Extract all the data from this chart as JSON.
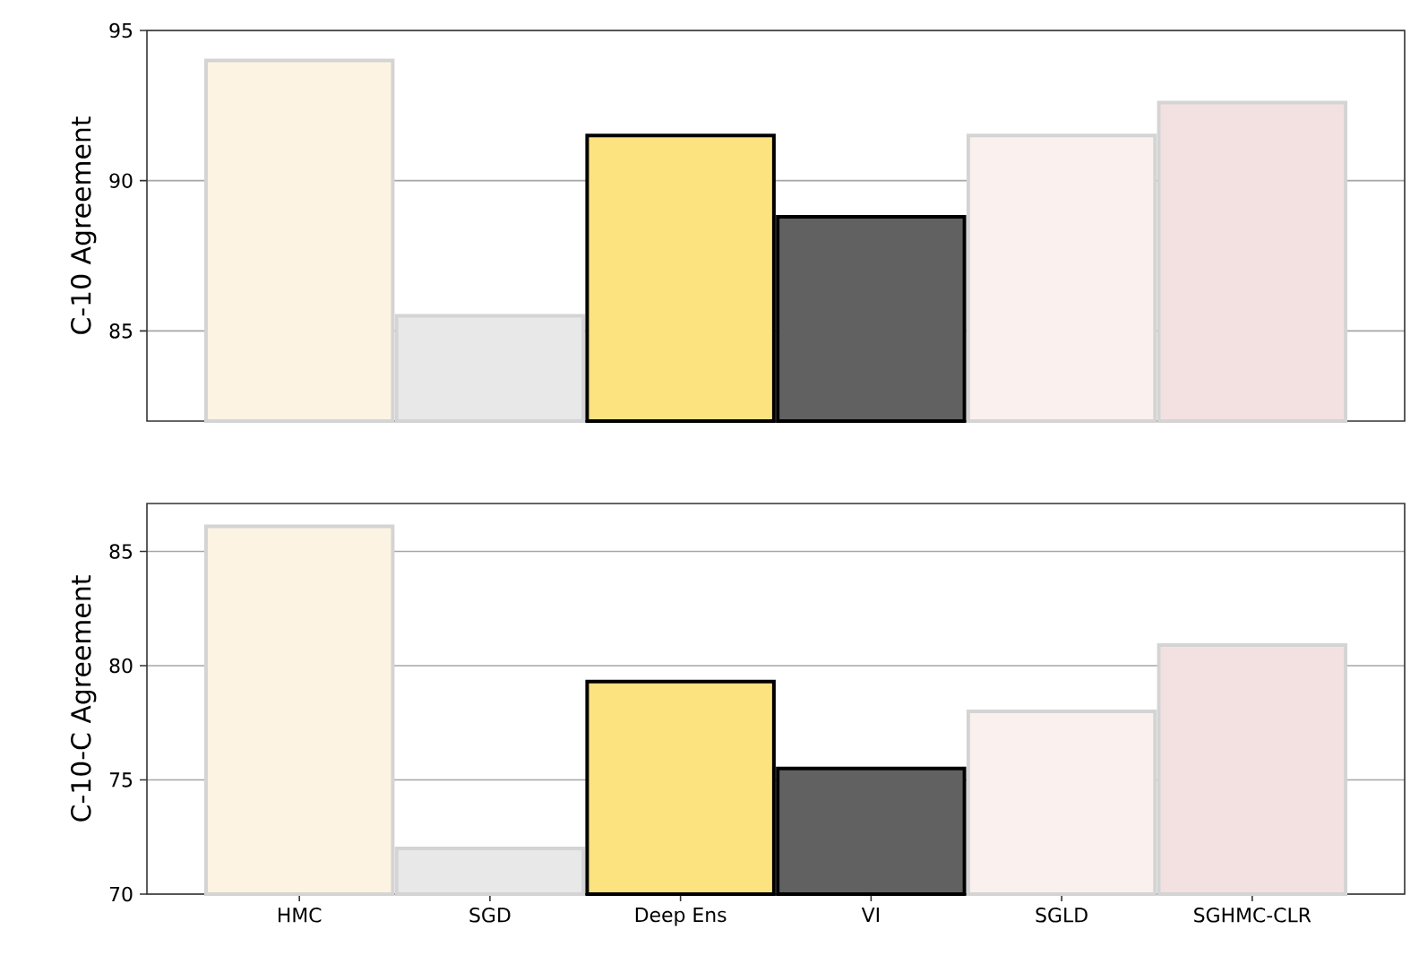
{
  "chart_data": [
    {
      "type": "bar",
      "ylabel": "C-10 Agreement",
      "categories": [
        null,
        null,
        null,
        null,
        null,
        null
      ],
      "values": [
        94.0,
        85.5,
        91.5,
        88.8,
        91.5,
        92.6
      ],
      "colors": [
        "#fdf3e3",
        "#e8e8e8",
        "#fde280",
        "#616161",
        "#faf0ee",
        "#f3e1e1"
      ],
      "ylim": [
        82,
        95
      ],
      "yticks": [
        85,
        90,
        95
      ],
      "grid": "y",
      "tick_labels": "y"
    },
    {
      "type": "bar",
      "ylabel": "C-10-C Agreement",
      "categories": [
        "HMC",
        "SGD",
        "Deep Ens",
        "VI",
        "SGLD",
        "SGHMC-CLR"
      ],
      "values": [
        86.1,
        72.0,
        79.3,
        75.5,
        78.0,
        80.9
      ],
      "colors": [
        "#fdf3e3",
        "#e8e8e8",
        "#fde280",
        "#616161",
        "#faf0ee",
        "#f3e1e1"
      ],
      "ylim": [
        70,
        87.1
      ],
      "yticks": [
        70,
        75,
        80,
        85
      ],
      "grid": "y"
    }
  ]
}
